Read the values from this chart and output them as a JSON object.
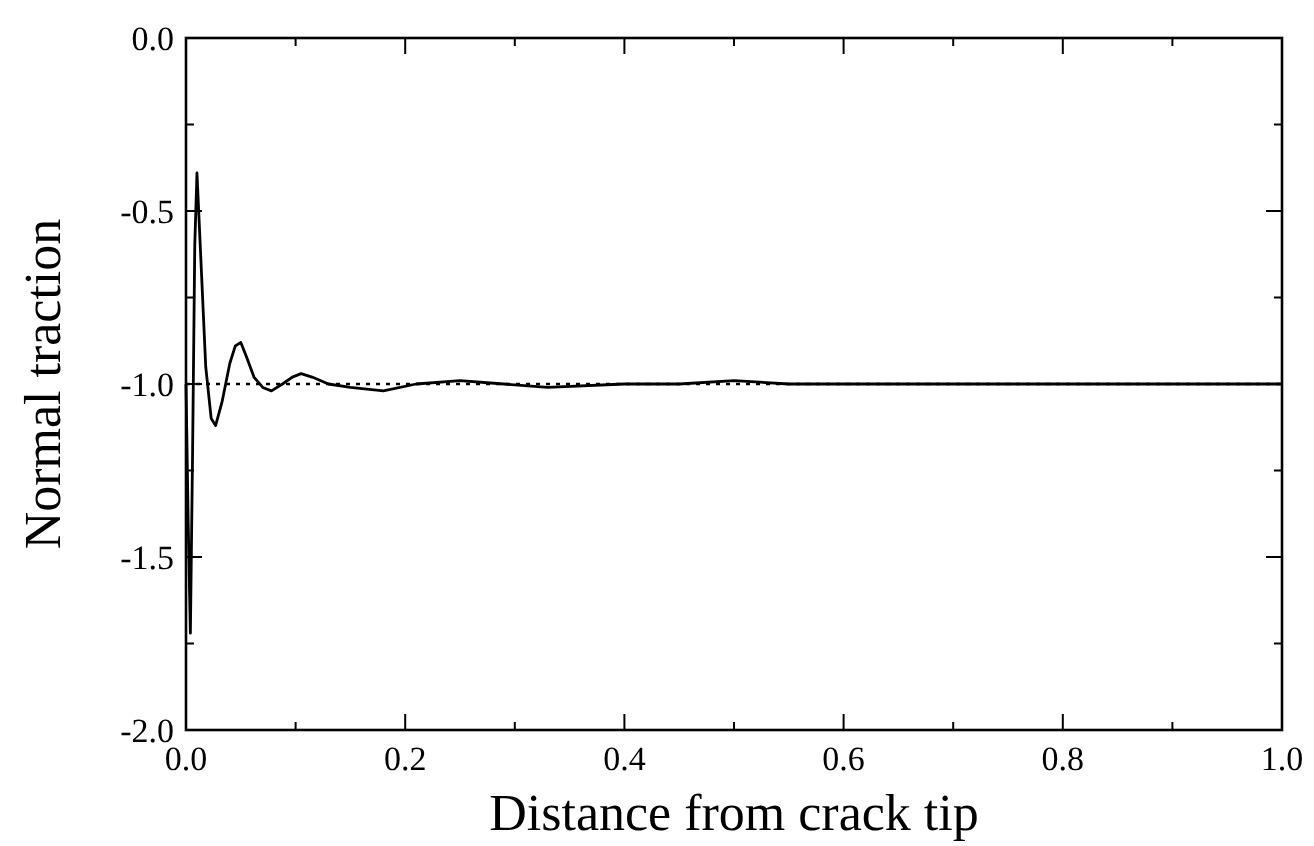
{
  "chart_data": {
    "type": "line",
    "xlabel": "Distance from crack tip",
    "ylabel": "Normal traction",
    "xlim": [
      0,
      1
    ],
    "ylim": [
      -2,
      0
    ],
    "xticks": [
      {
        "value": 0,
        "label": "0.0"
      },
      {
        "value": 0.1,
        "label": null
      },
      {
        "value": 0.2,
        "label": "0.2"
      },
      {
        "value": 0.3,
        "label": null
      },
      {
        "value": 0.4,
        "label": "0.4"
      },
      {
        "value": 0.5,
        "label": null
      },
      {
        "value": 0.6,
        "label": "0.6"
      },
      {
        "value": 0.7,
        "label": null
      },
      {
        "value": 0.8,
        "label": "0.8"
      },
      {
        "value": 0.9,
        "label": null
      },
      {
        "value": 1,
        "label": "1.0"
      }
    ],
    "yticks": [
      {
        "value": -2,
        "label": "-2.0"
      },
      {
        "value": -1.75,
        "label": null
      },
      {
        "value": -1.5,
        "label": "-1.5"
      },
      {
        "value": -1.25,
        "label": null
      },
      {
        "value": -1,
        "label": "-1.0"
      },
      {
        "value": -0.75,
        "label": null
      },
      {
        "value": -0.5,
        "label": "-0.5"
      },
      {
        "value": -0.25,
        "label": null
      },
      {
        "value": 0,
        "label": "0.0"
      }
    ],
    "grid": false,
    "marker": "none",
    "line_style": "solid",
    "series": [
      {
        "color": "#000000",
        "x": [
          0,
          0.002,
          0.004,
          0.006,
          0.008,
          0.01,
          0.013,
          0.018,
          0.023,
          0.027,
          0.033,
          0.04,
          0.045,
          0.05,
          0.055,
          0.062,
          0.07,
          0.078,
          0.088,
          0.097,
          0.105,
          0.115,
          0.13,
          0.15,
          0.18,
          0.21,
          0.25,
          0.29,
          0.33,
          0.4,
          0.45,
          0.5,
          0.55,
          0.6,
          0.8,
          1.0
        ],
        "values": [
          -1.0,
          -1.4,
          -1.72,
          -1.2,
          -0.6,
          -0.39,
          -0.6,
          -0.95,
          -1.1,
          -1.12,
          -1.05,
          -0.94,
          -0.89,
          -0.88,
          -0.92,
          -0.98,
          -1.01,
          -1.02,
          -1.0,
          -0.98,
          -0.97,
          -0.98,
          -1.0,
          -1.01,
          -1.02,
          -1.0,
          -0.99,
          -1.0,
          -1.01,
          -1.0,
          -1.0,
          -0.99,
          -1.0,
          -1.0,
          -1.0,
          -1.0
        ]
      }
    ],
    "ref_lines": [
      {
        "axis": "y",
        "value": -1,
        "color": "#000000",
        "line_style": "dotted"
      }
    ]
  }
}
